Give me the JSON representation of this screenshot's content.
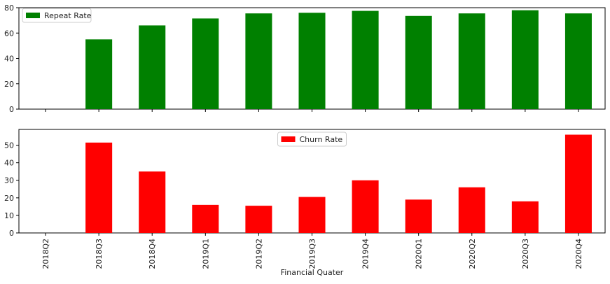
{
  "chart_data": {
    "type": "bar",
    "categories": [
      "2018Q2",
      "2018Q3",
      "2018Q4",
      "2019Q1",
      "2019Q2",
      "2019Q3",
      "2019Q4",
      "2020Q1",
      "2020Q2",
      "2020Q3",
      "2020Q4"
    ],
    "xlabel": "Financial Quater",
    "panels": [
      {
        "series": [
          {
            "name": "Repeat Rate",
            "color": "#008000",
            "values": [
              0,
              55,
              66,
              71.5,
              75.5,
              76,
              77.5,
              73.5,
              75.5,
              78,
              75.5
            ]
          }
        ],
        "ylim": [
          0,
          80
        ],
        "yticks": [
          0,
          20,
          40,
          60,
          80
        ],
        "legend_position": "upper left",
        "show_xticklabels": false
      },
      {
        "series": [
          {
            "name": "Churn Rate",
            "color": "#ff0000",
            "values": [
              0,
              51.5,
              35,
              16,
              15.5,
              20.5,
              30,
              19,
              26,
              18,
              56
            ]
          }
        ],
        "ylim": [
          0,
          59
        ],
        "yticks": [
          0,
          10,
          20,
          30,
          40,
          50
        ],
        "legend_position": "upper center",
        "show_xticklabels": true
      }
    ]
  }
}
